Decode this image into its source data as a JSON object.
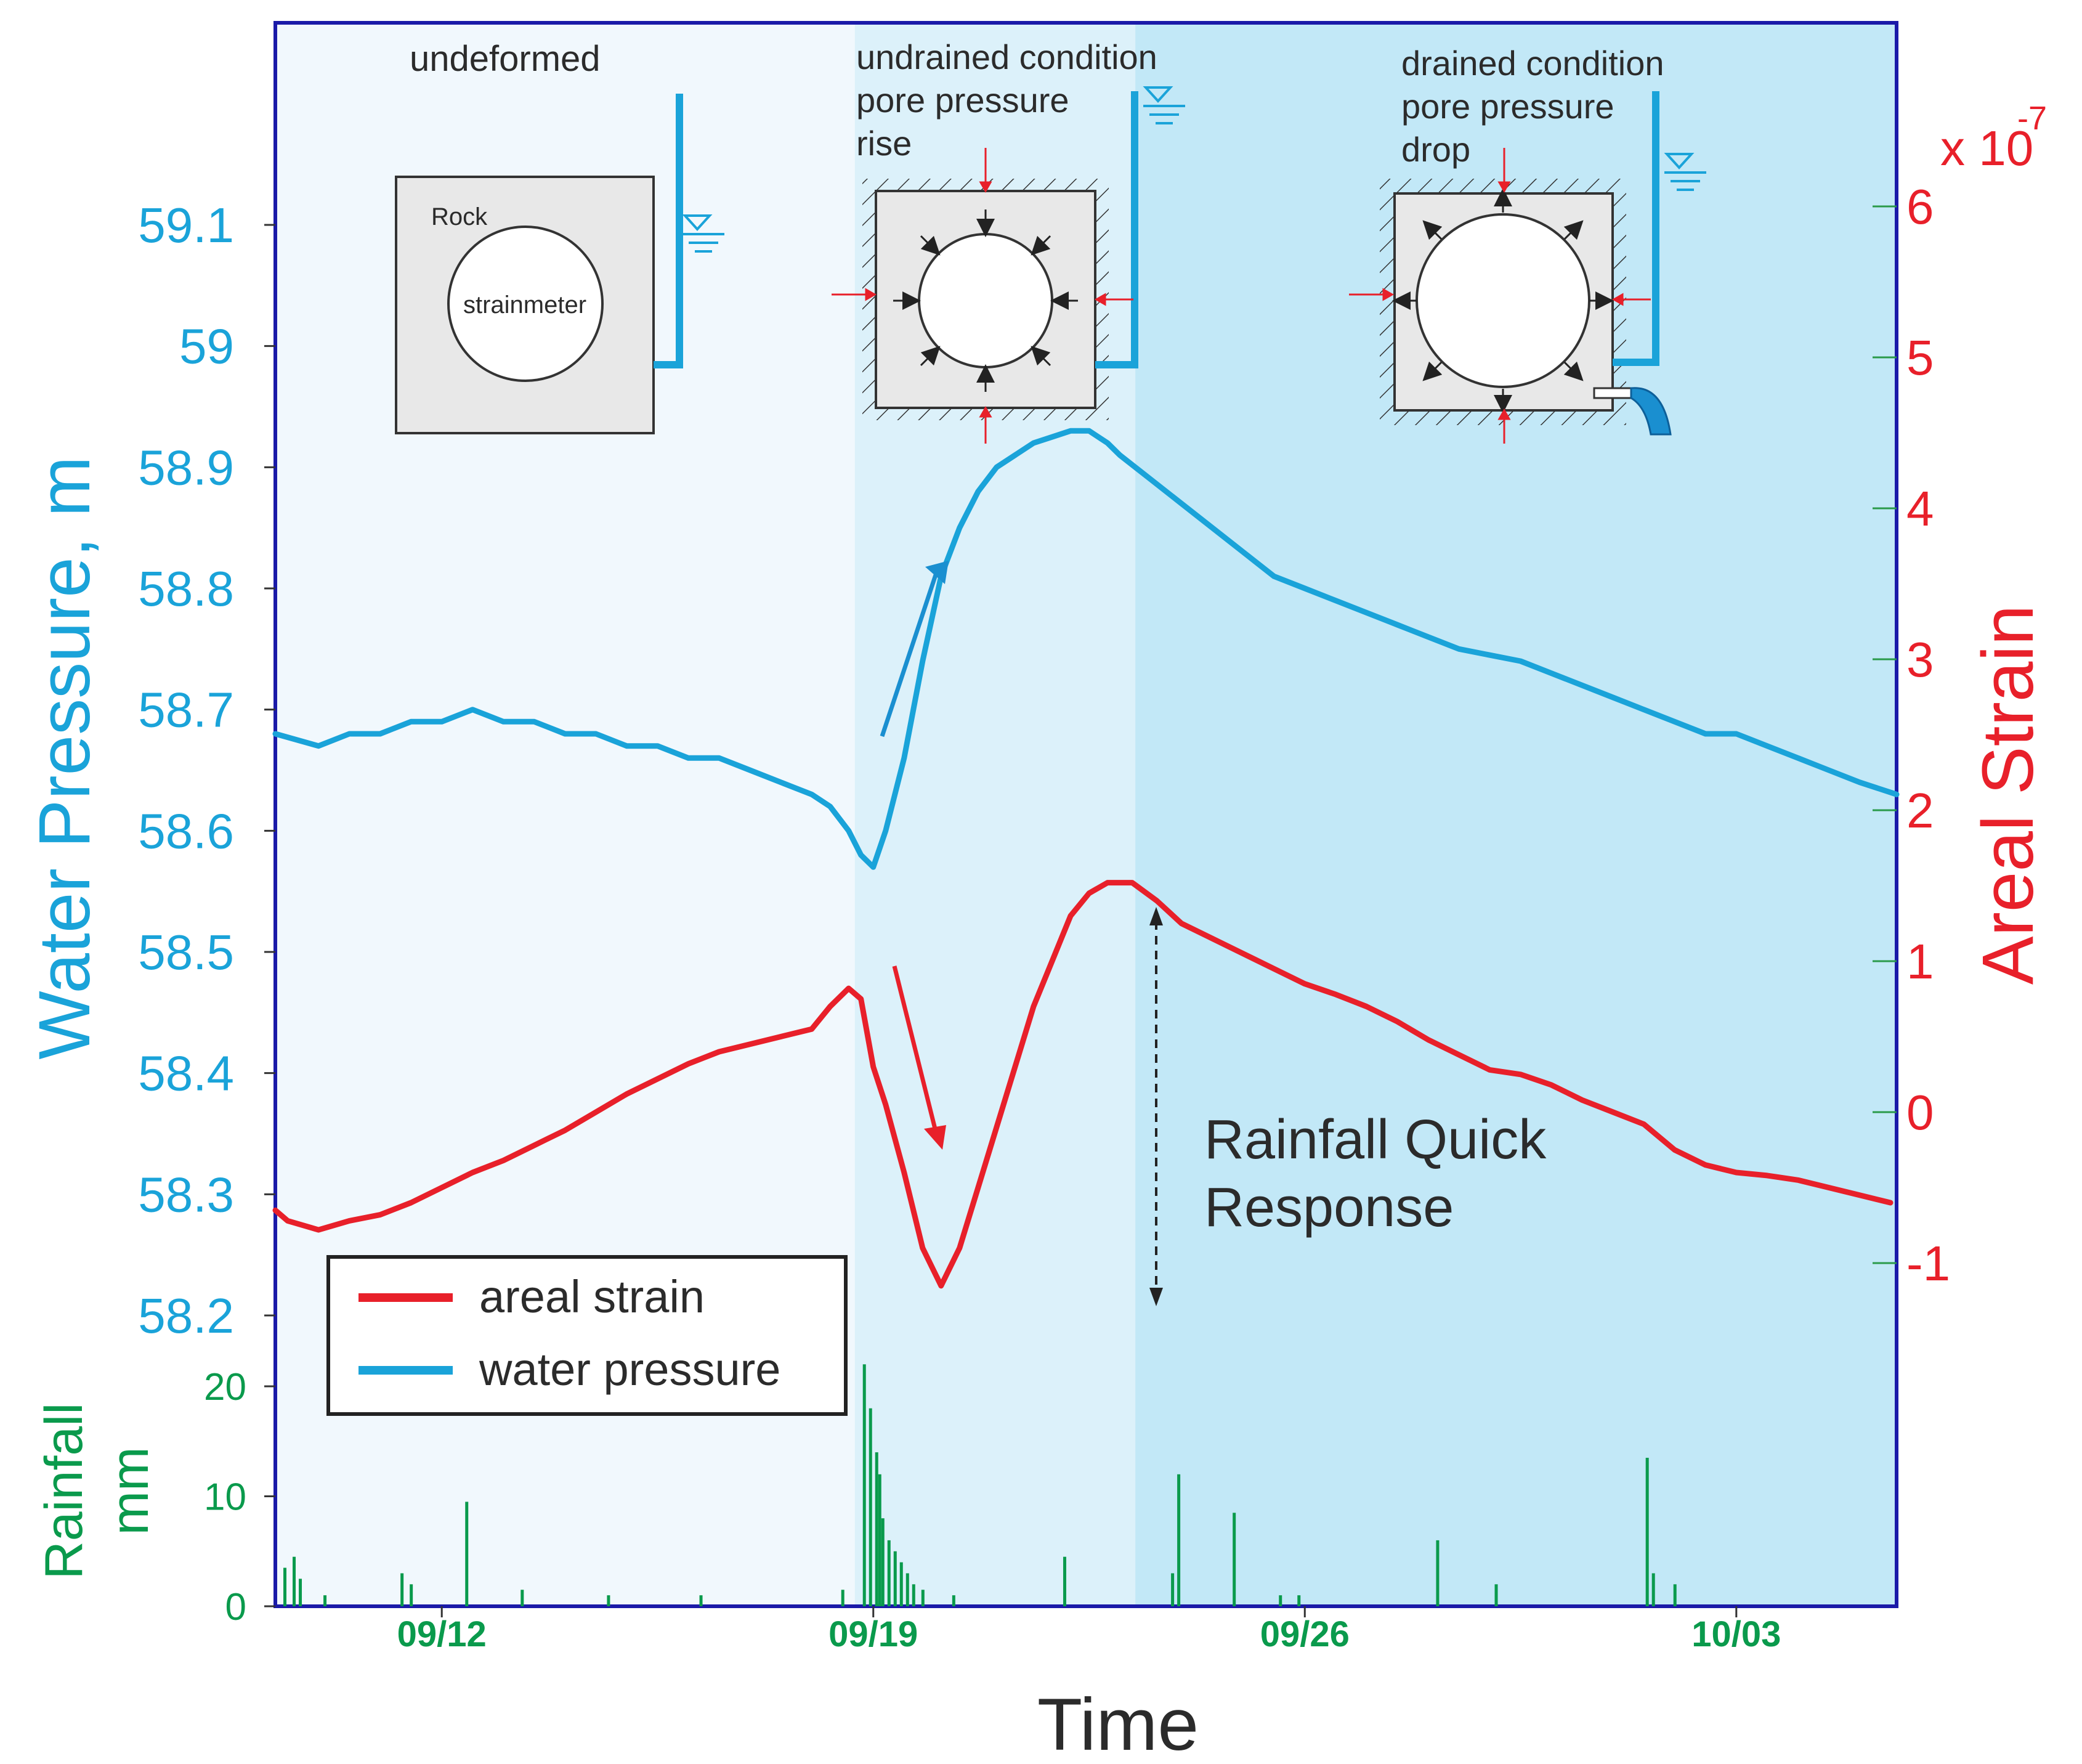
{
  "chart_data": {
    "type": "line",
    "xlabel": "Time",
    "x_ticks": [
      "09/12",
      "09/19",
      "09/26",
      "10/03"
    ],
    "x_tick_days": [
      12,
      19,
      26,
      33
    ],
    "xlim_days": [
      9.3,
      35.6
    ],
    "y_left": {
      "label": "Water Pressure, m",
      "ticks": [
        "58.2",
        "58.3",
        "58.4",
        "58.5",
        "58.6",
        "58.7",
        "58.8",
        "58.9",
        "59",
        "59.1"
      ],
      "tick_values": [
        58.2,
        58.3,
        58.4,
        58.5,
        58.6,
        58.7,
        58.8,
        58.9,
        59.0,
        59.1
      ],
      "ylim": [
        58.2,
        59.1
      ]
    },
    "y_right": {
      "label": "Areal Strain",
      "multiplier": "x 10",
      "exponent": "-7",
      "ticks": [
        "-1",
        "0",
        "1",
        "2",
        "3",
        "4",
        "5",
        "6"
      ],
      "tick_values": [
        -1,
        0,
        1,
        2,
        3,
        4,
        5,
        6
      ]
    },
    "y_rain": {
      "label_line1": "Rainfall",
      "label_line2": "mm",
      "ticks": [
        "0",
        "10",
        "20"
      ],
      "tick_values": [
        0,
        10,
        20
      ],
      "ylim": [
        0,
        24
      ]
    },
    "series": [
      {
        "name": "water pressure",
        "color": "#1aa3d9",
        "x_days": [
          9.3,
          10.0,
          10.5,
          11.0,
          11.5,
          12.0,
          12.5,
          13.0,
          13.5,
          14.0,
          14.5,
          15.0,
          15.5,
          16.0,
          16.5,
          17.0,
          17.5,
          18.0,
          18.3,
          18.6,
          18.8,
          19.0,
          19.2,
          19.5,
          19.8,
          20.1,
          20.4,
          20.7,
          21.0,
          21.3,
          21.6,
          21.9,
          22.2,
          22.5,
          22.8,
          23.0,
          23.5,
          24.0,
          24.5,
          25.0,
          25.5,
          26.0,
          26.5,
          27.0,
          27.5,
          28.0,
          28.5,
          29.0,
          29.5,
          30.0,
          30.5,
          31.0,
          31.5,
          32.0,
          32.5,
          33.0,
          33.5,
          34.0,
          34.5,
          35.0,
          35.6
        ],
        "values": [
          58.68,
          58.67,
          58.68,
          58.68,
          58.69,
          58.69,
          58.7,
          58.69,
          58.69,
          58.68,
          58.68,
          58.67,
          58.67,
          58.66,
          58.66,
          58.65,
          58.64,
          58.63,
          58.62,
          58.6,
          58.58,
          58.57,
          58.6,
          58.66,
          58.74,
          58.81,
          58.85,
          58.88,
          58.9,
          58.91,
          58.92,
          58.925,
          58.93,
          58.93,
          58.92,
          58.91,
          58.89,
          58.87,
          58.85,
          58.83,
          58.81,
          58.8,
          58.79,
          58.78,
          58.77,
          58.76,
          58.75,
          58.745,
          58.74,
          58.73,
          58.72,
          58.71,
          58.7,
          58.69,
          58.68,
          58.68,
          58.67,
          58.66,
          58.65,
          58.64,
          58.63
        ]
      },
      {
        "name": "areal strain",
        "color": "#e8202a",
        "x_days": [
          9.3,
          9.5,
          10.0,
          10.5,
          11.0,
          11.5,
          12.0,
          12.5,
          13.0,
          13.5,
          14.0,
          14.5,
          15.0,
          15.5,
          16.0,
          16.5,
          17.0,
          17.5,
          18.0,
          18.3,
          18.6,
          18.8,
          19.0,
          19.2,
          19.5,
          19.8,
          20.1,
          20.4,
          20.7,
          21.0,
          21.3,
          21.6,
          21.9,
          22.2,
          22.5,
          22.8,
          23.2,
          23.6,
          24.0,
          24.5,
          25.0,
          25.5,
          26.0,
          26.5,
          27.0,
          27.5,
          28.0,
          28.5,
          29.0,
          29.5,
          30.0,
          30.5,
          31.0,
          31.5,
          32.0,
          32.5,
          33.0,
          33.5,
          34.0,
          34.5,
          35.0,
          35.5
        ],
        "values": [
          -0.65,
          -0.72,
          -0.78,
          -0.72,
          -0.68,
          -0.6,
          -0.5,
          -0.4,
          -0.32,
          -0.22,
          -0.12,
          0.0,
          0.12,
          0.22,
          0.32,
          0.4,
          0.45,
          0.5,
          0.55,
          0.7,
          0.82,
          0.75,
          0.3,
          0.05,
          -0.4,
          -0.9,
          -1.15,
          -0.9,
          -0.5,
          -0.1,
          0.3,
          0.7,
          1.0,
          1.3,
          1.45,
          1.52,
          1.52,
          1.4,
          1.25,
          1.15,
          1.05,
          0.95,
          0.85,
          0.78,
          0.7,
          0.6,
          0.48,
          0.38,
          0.28,
          0.25,
          0.18,
          0.08,
          0.0,
          -0.08,
          -0.25,
          -0.35,
          -0.4,
          -0.42,
          -0.45,
          -0.5,
          -0.55,
          -0.6
        ]
      }
    ],
    "rainfall": {
      "color": "#0a9a4c",
      "x_days": [
        9.45,
        9.6,
        9.7,
        10.1,
        11.35,
        11.5,
        12.4,
        13.3,
        14.7,
        16.2,
        18.5,
        18.85,
        18.95,
        19.05,
        19.1,
        19.15,
        19.25,
        19.35,
        19.45,
        19.55,
        19.65,
        19.8,
        20.3,
        22.1,
        23.85,
        23.95,
        24.85,
        25.6,
        25.9,
        28.15,
        29.1,
        31.55,
        31.65,
        32.0
      ],
      "values": [
        3.5,
        4.5,
        2.5,
        1.0,
        3.0,
        2.0,
        9.5,
        1.5,
        1.0,
        1.0,
        1.5,
        22.0,
        18.0,
        14.0,
        12.0,
        8.0,
        6.0,
        5.0,
        4.0,
        3.0,
        2.0,
        1.5,
        1.0,
        4.5,
        3.0,
        12.0,
        8.5,
        1.0,
        1.0,
        6.0,
        2.0,
        13.5,
        3.0,
        2.0
      ]
    },
    "regions": [
      {
        "from_day": 9.3,
        "to_day": 18.7,
        "color": "#f1f8fd"
      },
      {
        "from_day": 18.7,
        "to_day": 23.25,
        "color": "#dcf1fa"
      },
      {
        "from_day": 23.25,
        "to_day": 35.6,
        "color": "#c2e8f7"
      }
    ],
    "legend": {
      "position": "lower-left",
      "entries": [
        {
          "label": "areal strain",
          "color": "#e8202a"
        },
        {
          "label": "water pressure",
          "color": "#1aa3d9"
        }
      ]
    },
    "annotations": {
      "undeformed": "undeformed",
      "rock": "Rock",
      "strainmeter": "strainmeter",
      "undrained": [
        "undrained condition",
        "pore pressure",
        "rise"
      ],
      "drained": [
        "drained condition",
        "pore pressure",
        "drop"
      ],
      "quick_response": [
        "Rainfall Quick",
        "Response"
      ]
    }
  }
}
